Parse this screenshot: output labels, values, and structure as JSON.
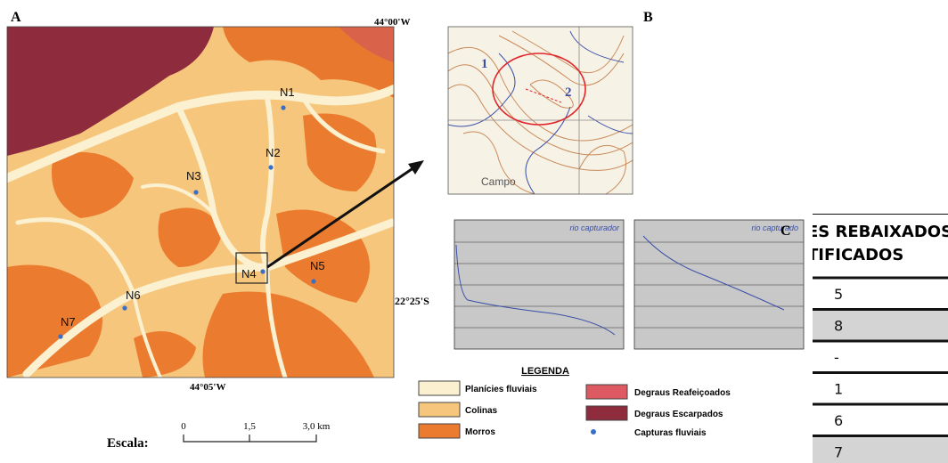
{
  "panel_a": {
    "label": "A",
    "lon_top": "44°00'W",
    "lon_bottom": "44°05'W",
    "lat": "22°25'S",
    "points": [
      "N1",
      "N2",
      "N3",
      "N4",
      "N5",
      "N6",
      "N7"
    ],
    "scale": {
      "title": "Escala:",
      "ticks": [
        "0",
        "1,5",
        "3,0 km"
      ]
    }
  },
  "panel_b": {
    "label": "B",
    "markers": [
      "1",
      "2"
    ],
    "place": "Campo"
  },
  "panel_c": {
    "label": "C",
    "profiles": [
      "rio capturador",
      "rio capturado"
    ]
  },
  "legend": {
    "title": "LEGENDA",
    "items": [
      "Planícies fluviais",
      "Colinas",
      "Morros",
      "Degraus Reafeiçoados",
      "Degraus Escarpados",
      "Capturas fluviais"
    ]
  },
  "table": {
    "header": [
      "ES REBAIXADOS",
      "TIFICADOS"
    ],
    "rows": [
      "5",
      "8",
      "-",
      "1",
      "6",
      "7"
    ]
  }
}
